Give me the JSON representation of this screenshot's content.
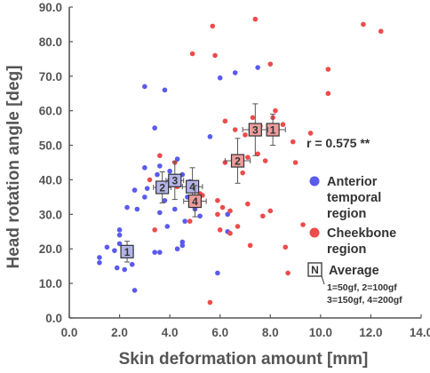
{
  "chart_data": {
    "type": "scatter",
    "xlabel": "Skin deformation amount [mm]",
    "ylabel": "Head rotation angle [deg]",
    "xlim": [
      0.0,
      14.0
    ],
    "ylim": [
      0.0,
      90.0
    ],
    "x_ticks": [
      "0.0",
      "2.0",
      "4.0",
      "6.0",
      "8.0",
      "10.0",
      "12.0",
      "14.0"
    ],
    "y_ticks": [
      "0.0",
      "10.0",
      "20.0",
      "30.0",
      "40.0",
      "50.0",
      "60.0",
      "70.0",
      "80.0",
      "90.0"
    ],
    "grid": false,
    "legend_position": "right",
    "annotation": "r = 0.575 **",
    "series": [
      {
        "name": "Anterior temporal region",
        "color": "#5a5aee",
        "points": [
          [
            1.2,
            16.0
          ],
          [
            1.2,
            17.5
          ],
          [
            1.5,
            20.5
          ],
          [
            1.8,
            19.5
          ],
          [
            1.9,
            14.5
          ],
          [
            2.0,
            21.5
          ],
          [
            2.0,
            24.0
          ],
          [
            2.0,
            25.5
          ],
          [
            2.2,
            14.0
          ],
          [
            2.2,
            19.0
          ],
          [
            2.5,
            15.5
          ],
          [
            2.6,
            8.0
          ],
          [
            2.3,
            32.0
          ],
          [
            2.6,
            37.0
          ],
          [
            2.7,
            31.5
          ],
          [
            3.0,
            35.0
          ],
          [
            3.0,
            43.5
          ],
          [
            3.1,
            37.5
          ],
          [
            3.0,
            67.0
          ],
          [
            3.4,
            55.0
          ],
          [
            3.4,
            19.0
          ],
          [
            3.6,
            19.0
          ],
          [
            3.6,
            30.5
          ],
          [
            3.5,
            41.5
          ],
          [
            3.6,
            44.0
          ],
          [
            3.8,
            66.0
          ],
          [
            3.8,
            34.0
          ],
          [
            3.9,
            26.5
          ],
          [
            4.0,
            42.5
          ],
          [
            4.0,
            40.0
          ],
          [
            4.2,
            31.5
          ],
          [
            4.3,
            20.0
          ],
          [
            4.3,
            46.0
          ],
          [
            4.5,
            21.0
          ],
          [
            4.5,
            22.0
          ],
          [
            4.5,
            41.5
          ],
          [
            4.6,
            28.0
          ],
          [
            4.7,
            35.0
          ],
          [
            4.8,
            39.5
          ],
          [
            4.9,
            33.5
          ],
          [
            5.0,
            31.5
          ],
          [
            5.2,
            29.5
          ],
          [
            5.6,
            52.5
          ],
          [
            5.9,
            13.0
          ],
          [
            6.0,
            69.5
          ],
          [
            6.3,
            30.0
          ],
          [
            6.3,
            25.0
          ],
          [
            6.6,
            71.0
          ],
          [
            7.5,
            72.5
          ]
        ]
      },
      {
        "name": "Cheekbone region",
        "color": "#ee4b4b",
        "points": [
          [
            3.2,
            40.0
          ],
          [
            3.4,
            25.5
          ],
          [
            3.6,
            47.0
          ],
          [
            4.2,
            45.0
          ],
          [
            4.3,
            38.0
          ],
          [
            4.8,
            28.0
          ],
          [
            5.2,
            36.0
          ],
          [
            5.3,
            35.5
          ],
          [
            5.6,
            4.5
          ],
          [
            5.7,
            84.5
          ],
          [
            5.8,
            76.0
          ],
          [
            5.9,
            34.0
          ],
          [
            5.9,
            30.0
          ],
          [
            6.0,
            25.5
          ],
          [
            6.1,
            32.0
          ],
          [
            6.2,
            57.0
          ],
          [
            6.2,
            45.0
          ],
          [
            6.4,
            24.5
          ],
          [
            6.4,
            31.0
          ],
          [
            6.6,
            54.5
          ],
          [
            6.7,
            26.5
          ],
          [
            6.9,
            42.0
          ],
          [
            7.0,
            53.0
          ],
          [
            7.1,
            46.5
          ],
          [
            7.1,
            33.0
          ],
          [
            7.2,
            21.0
          ],
          [
            7.3,
            58.0
          ],
          [
            7.4,
            86.5
          ],
          [
            7.5,
            47.5
          ],
          [
            7.6,
            55.5
          ],
          [
            7.7,
            29.5
          ],
          [
            7.8,
            45.5
          ],
          [
            8.0,
            73.5
          ],
          [
            8.0,
            31.0
          ],
          [
            8.1,
            58.0
          ],
          [
            8.2,
            60.0
          ],
          [
            8.5,
            56.0
          ],
          [
            8.6,
            20.5
          ],
          [
            8.7,
            13.0
          ],
          [
            8.9,
            51.0
          ],
          [
            9.0,
            45.0
          ],
          [
            9.3,
            27.0
          ],
          [
            9.6,
            53.5
          ],
          [
            10.3,
            72.0
          ],
          [
            10.3,
            65.0
          ],
          [
            11.7,
            85.0
          ],
          [
            12.4,
            83.0
          ],
          [
            4.9,
            76.5
          ]
        ]
      }
    ],
    "averages": [
      {
        "region": "anterior",
        "label": "1",
        "x": 2.3,
        "y": 19.2,
        "xerr": 0.25,
        "yerr": 3.0
      },
      {
        "region": "anterior",
        "label": "2",
        "x": 3.7,
        "y": 37.8,
        "xerr": 0.35,
        "yerr": 4.5
      },
      {
        "region": "anterior",
        "label": "3",
        "x": 4.2,
        "y": 39.8,
        "xerr": 0.35,
        "yerr": 5.5
      },
      {
        "region": "anterior",
        "label": "4",
        "x": 4.9,
        "y": 38.0,
        "xerr": 0.4,
        "yerr": 5.5
      },
      {
        "region": "cheekbone",
        "label": "1",
        "x": 8.1,
        "y": 54.5,
        "xerr": 0.5,
        "yerr": 4.5
      },
      {
        "region": "cheekbone",
        "label": "2",
        "x": 6.7,
        "y": 45.5,
        "xerr": 0.5,
        "yerr": 6.5
      },
      {
        "region": "cheekbone",
        "label": "3",
        "x": 7.4,
        "y": 54.5,
        "xerr": 0.5,
        "yerr": 7.5
      },
      {
        "region": "cheekbone",
        "label": "4",
        "x": 5.0,
        "y": 33.8,
        "xerr": 0.45,
        "yerr": 4.5
      }
    ],
    "average_fill": {
      "anterior": "#b4b4ea",
      "cheekbone": "#ee9c9c"
    }
  },
  "legend": {
    "anterior_line1": "Anterior",
    "anterior_line2": "temporal",
    "anterior_line3": "region",
    "cheekbone_line1": "Cheekbone",
    "cheekbone_line2": "region",
    "average_symbol": "N",
    "average_label": "Average",
    "average_note_line1": "1=50gf,   2=100gf",
    "average_note_line2": "3=150gf, 4=200gf"
  }
}
